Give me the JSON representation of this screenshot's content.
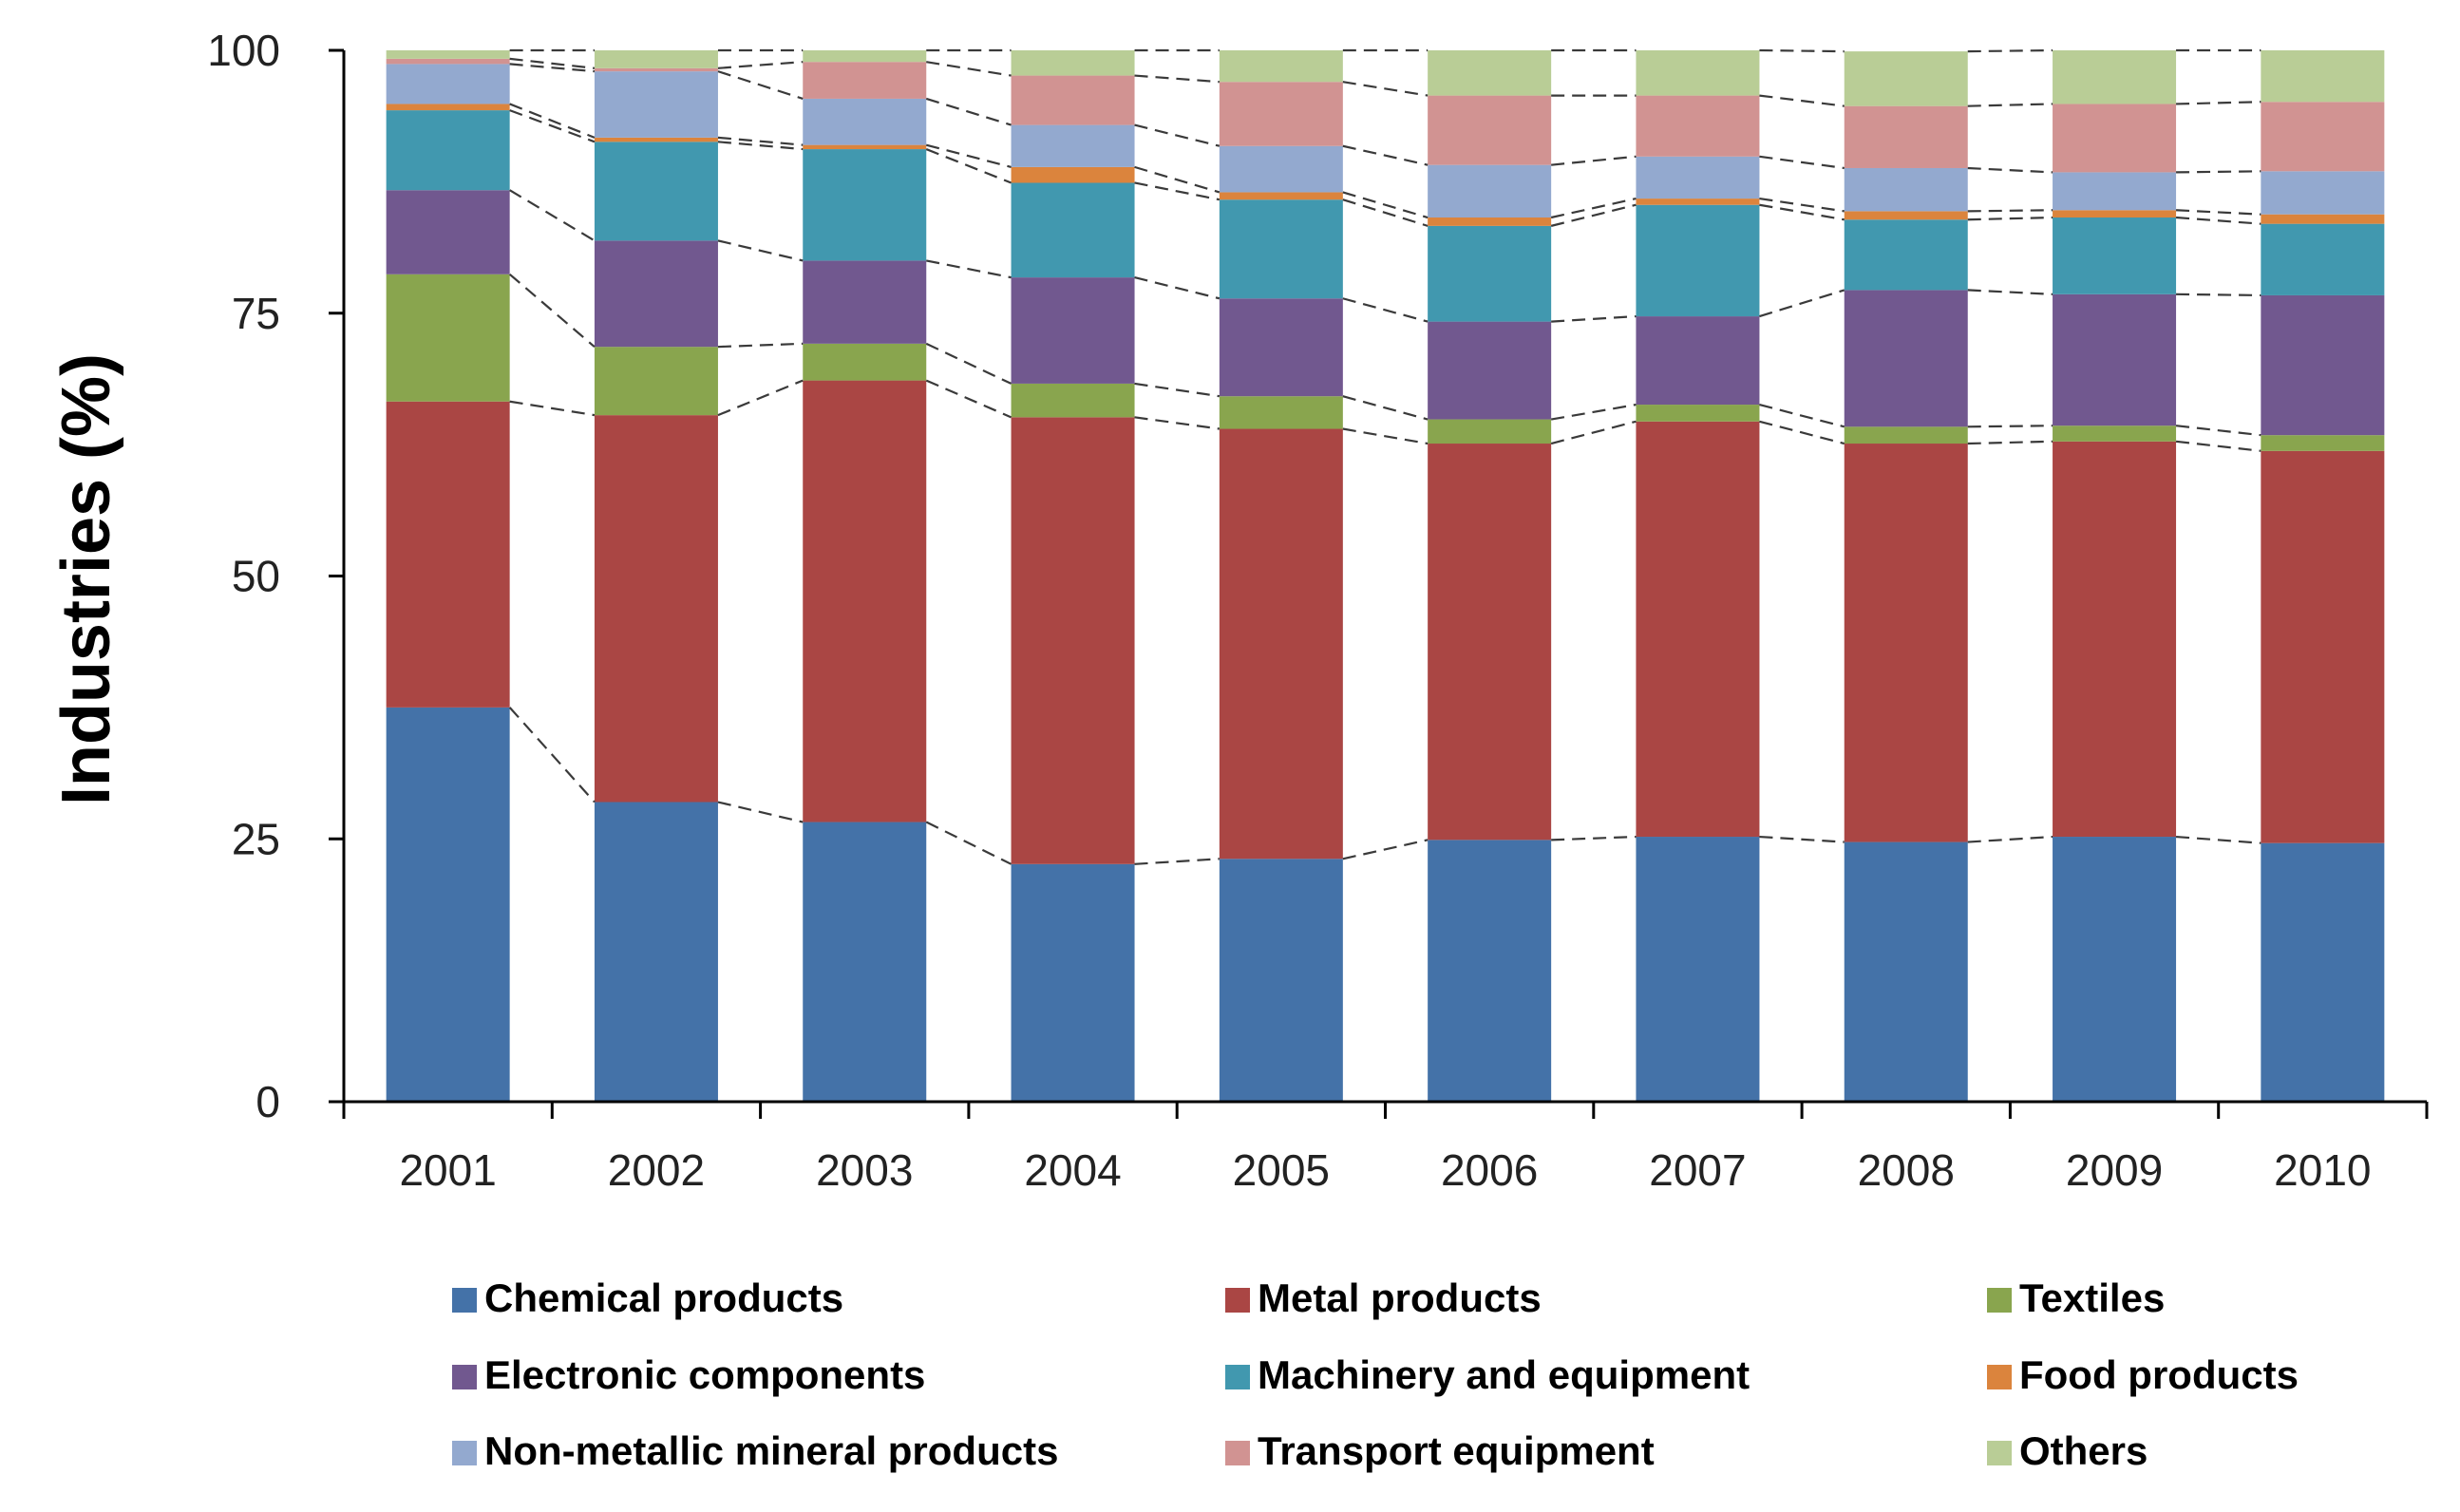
{
  "chart_data": {
    "type": "bar",
    "stacked": true,
    "title": "",
    "xlabel": "",
    "ylabel": "Industries (%)",
    "ylim": [
      0,
      100
    ],
    "yticks": [
      0,
      25,
      50,
      75,
      100
    ],
    "grid": false,
    "connector_lines": "dashed",
    "legend_position": "bottom",
    "categories": [
      "2001",
      "2002",
      "2003",
      "2004",
      "2005",
      "2006",
      "2007",
      "2008",
      "2009",
      "2010"
    ],
    "series": [
      {
        "name": "Chemical products",
        "color": "#4472A8",
        "values": [
          37.5,
          28.5,
          26.6,
          22.6,
          23.1,
          24.9,
          25.2,
          24.7,
          25.2,
          24.6
        ]
      },
      {
        "name": "Metal products",
        "color": "#AA4644",
        "values": [
          29.1,
          36.8,
          42.0,
          42.5,
          40.9,
          37.7,
          39.5,
          37.9,
          37.6,
          37.3
        ]
      },
      {
        "name": "Textiles",
        "color": "#89A54E",
        "values": [
          12.1,
          6.5,
          3.5,
          3.2,
          3.1,
          2.3,
          1.6,
          1.6,
          1.5,
          1.5
        ]
      },
      {
        "name": "Electronic components",
        "color": "#71588F",
        "values": [
          8.0,
          10.1,
          7.9,
          10.1,
          9.3,
          9.3,
          8.4,
          13.0,
          12.5,
          13.3
        ]
      },
      {
        "name": "Machinery and equipment",
        "color": "#4198AF",
        "values": [
          7.6,
          9.4,
          10.6,
          9.0,
          9.4,
          9.1,
          10.6,
          6.7,
          7.3,
          6.8
        ]
      },
      {
        "name": "Food products",
        "color": "#DB843D",
        "values": [
          0.6,
          0.4,
          0.4,
          1.5,
          0.7,
          0.8,
          0.6,
          0.8,
          0.7,
          0.9
        ]
      },
      {
        "name": "Non-metallic mineral products",
        "color": "#93A9CF",
        "values": [
          3.8,
          6.3,
          4.4,
          4.0,
          4.4,
          5.0,
          4.0,
          4.1,
          3.6,
          4.1
        ]
      },
      {
        "name": "Transport equipment",
        "color": "#D19392",
        "values": [
          0.5,
          0.3,
          3.5,
          4.7,
          6.1,
          6.6,
          5.8,
          5.9,
          6.5,
          6.6
        ]
      },
      {
        "name": "Others",
        "color": "#B9CD96",
        "values": [
          0.8,
          1.7,
          1.1,
          2.4,
          3.0,
          4.3,
          4.3,
          5.2,
          5.1,
          4.9
        ]
      }
    ]
  }
}
